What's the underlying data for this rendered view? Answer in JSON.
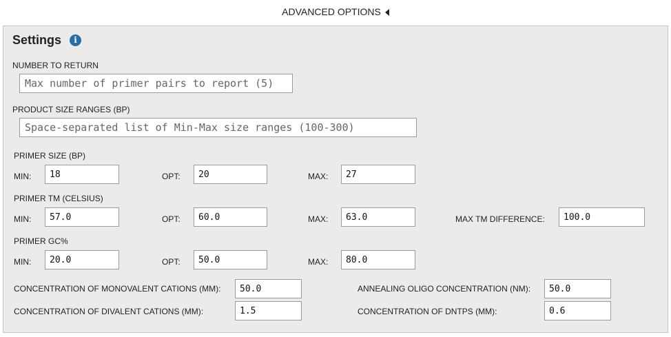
{
  "advanced_options": {
    "label": "ADVANCED OPTIONS"
  },
  "settings": {
    "title": "Settings",
    "info_icon": "info-icon",
    "number_to_return": {
      "label": "NUMBER TO RETURN",
      "value": "",
      "placeholder": "Max number of primer pairs to report (5)"
    },
    "product_size_ranges": {
      "label": "PRODUCT SIZE RANGES (BP)",
      "value": "",
      "placeholder": "Space-separated list of Min-Max size ranges (100-300)"
    },
    "primer_size": {
      "label": "PRIMER SIZE (BP)",
      "min_label": "MIN:",
      "min": "18",
      "opt_label": "OPT:",
      "opt": "20",
      "max_label": "MAX:",
      "max": "27"
    },
    "primer_tm": {
      "label": "PRIMER TM (CELSIUS)",
      "min_label": "MIN:",
      "min": "57.0",
      "opt_label": "OPT:",
      "opt": "60.0",
      "max_label": "MAX:",
      "max": "63.0",
      "diff_label": "MAX TM DIFFERENCE:",
      "diff": "100.0"
    },
    "primer_gc": {
      "label": "PRIMER GC%",
      "min_label": "MIN:",
      "min": "20.0",
      "opt_label": "OPT:",
      "opt": "50.0",
      "max_label": "MAX:",
      "max": "80.0"
    },
    "concentrations": {
      "monovalent_label": "CONCENTRATION OF MONOVALENT CATIONS (MM):",
      "monovalent": "50.0",
      "divalent_label": "CONCENTRATION OF DIVALENT CATIONS (MM):",
      "divalent": "1.5",
      "oligo_label": "ANNEALING OLIGO CONCENTRATION (NM):",
      "oligo": "50.0",
      "dntps_label": "CONCENTRATION OF DNTPS (MM):",
      "dntps": "0.6"
    }
  }
}
